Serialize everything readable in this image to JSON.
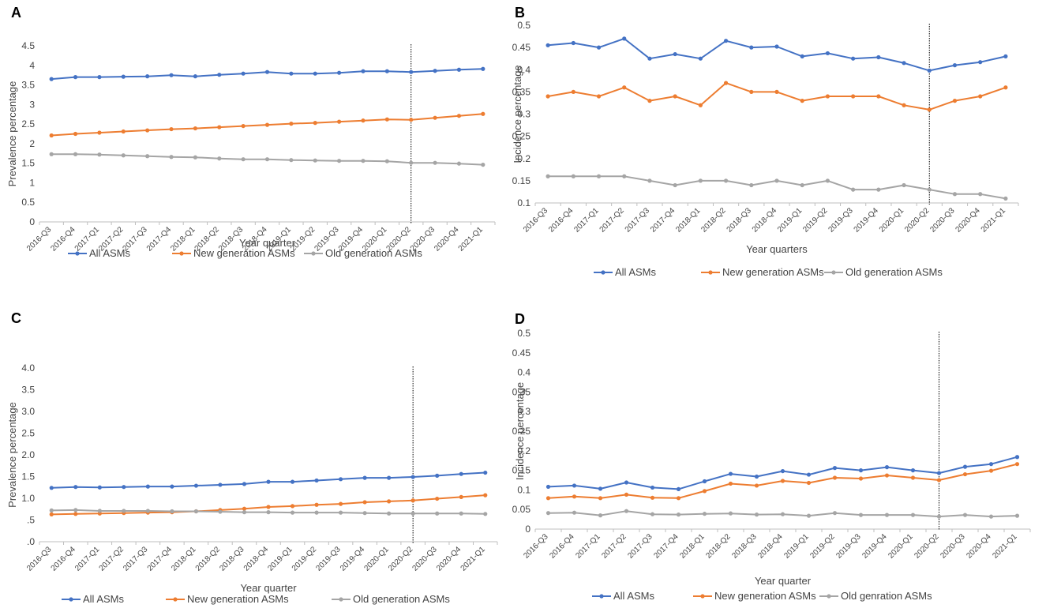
{
  "figure": {
    "panel_labels": [
      "A",
      "B",
      "C",
      "D"
    ]
  },
  "chart_data": [
    {
      "panel": "A",
      "type": "line",
      "categories": [
        "2016-Q3",
        "2016-Q4",
        "2017-Q1",
        "2017-Q2",
        "2017-Q3",
        "2017-Q4",
        "2018-Q1",
        "2018-Q2",
        "2018-Q3",
        "2018-Q4",
        "2019-Q1",
        "2019-Q2",
        "2019-Q3",
        "2019-Q4",
        "2020-Q1",
        "2020-Q2",
        "2020-Q3",
        "2020-Q4",
        "2021-Q1"
      ],
      "series": [
        {
          "name": "All ASMs",
          "color": "#4472c4",
          "values": [
            3.65,
            3.7,
            3.7,
            3.71,
            3.72,
            3.75,
            3.72,
            3.76,
            3.79,
            3.83,
            3.79,
            3.79,
            3.81,
            3.85,
            3.85,
            3.83,
            3.86,
            3.89,
            3.91
          ]
        },
        {
          "name": "New generation ASMs",
          "color": "#ed7d31",
          "values": [
            2.21,
            2.25,
            2.28,
            2.31,
            2.34,
            2.37,
            2.39,
            2.42,
            2.45,
            2.48,
            2.51,
            2.53,
            2.56,
            2.59,
            2.62,
            2.61,
            2.66,
            2.71,
            2.76
          ]
        },
        {
          "name": "Old generation ASMs",
          "color": "#a5a5a5",
          "values": [
            1.73,
            1.73,
            1.72,
            1.7,
            1.68,
            1.66,
            1.65,
            1.62,
            1.6,
            1.6,
            1.58,
            1.57,
            1.56,
            1.56,
            1.55,
            1.51,
            1.51,
            1.49,
            1.46
          ]
        }
      ],
      "yticks": [
        "0",
        "0.5",
        "1",
        "1.5",
        "2",
        "2.5",
        "3",
        "3.5",
        "4",
        "4.5"
      ],
      "ylim": [
        0,
        4.5
      ],
      "xlabel": "Year quarter",
      "ylabel": "Prevalence percentage",
      "vline_category": "2020-Q2",
      "legend": [
        "All ASMs",
        "New generation ASMs",
        "Old generation ASMs"
      ]
    },
    {
      "panel": "B",
      "type": "line",
      "categories": [
        "2016-Q3",
        "2016-Q4",
        "2017-Q1",
        "2017-Q2",
        "2017-Q3",
        "2017-Q4",
        "2018-Q1",
        "2018-Q2",
        "2018-Q3",
        "2018-Q4",
        "2019-Q1",
        "2019-Q2",
        "2019-Q3",
        "2019-Q4",
        "2020-Q1",
        "2020-Q2",
        "2020-Q3",
        "2020-Q4",
        "2021-Q1"
      ],
      "series": [
        {
          "name": "All ASMs",
          "color": "#4472c4",
          "values": [
            0.455,
            0.46,
            0.45,
            0.47,
            0.425,
            0.435,
            0.425,
            0.465,
            0.45,
            0.452,
            0.43,
            0.437,
            0.425,
            0.428,
            0.415,
            0.398,
            0.41,
            0.417,
            0.43
          ]
        },
        {
          "name": "New generation ASMs",
          "color": "#ed7d31",
          "values": [
            0.34,
            0.35,
            0.34,
            0.36,
            0.33,
            0.34,
            0.32,
            0.37,
            0.35,
            0.35,
            0.33,
            0.34,
            0.34,
            0.34,
            0.32,
            0.31,
            0.33,
            0.34,
            0.36
          ]
        },
        {
          "name": "Old generation ASMs",
          "color": "#a5a5a5",
          "values": [
            0.16,
            0.16,
            0.16,
            0.16,
            0.15,
            0.14,
            0.15,
            0.15,
            0.14,
            0.15,
            0.14,
            0.15,
            0.13,
            0.13,
            0.14,
            0.13,
            0.12,
            0.12,
            0.11
          ]
        }
      ],
      "yticks": [
        "0.1",
        "0.15",
        "0.2",
        "0.25",
        "0.3",
        "0.35",
        "0.4",
        "0.45",
        "0.5"
      ],
      "ylim": [
        0.1,
        0.5
      ],
      "xlabel": "Year quarters",
      "ylabel": "Incidence percentage",
      "vline_category": "2020-Q2",
      "legend": [
        "All ASMs",
        "New generation ASMs",
        "Old generation ASMs"
      ]
    },
    {
      "panel": "C",
      "type": "line",
      "categories": [
        "2016-Q3",
        "2016-Q4",
        "2017-Q1",
        "2017-Q2",
        "2017-Q3",
        "2017-Q4",
        "2018-Q1",
        "2018-Q2",
        "2018-Q3",
        "2018-Q4",
        "2019-Q1",
        "2019-Q2",
        "2019-Q3",
        "2019-Q4",
        "2020-Q1",
        "2020-Q2",
        "2020-Q3",
        "2020-Q4",
        "2021-Q1"
      ],
      "series": [
        {
          "name": "All ASMs",
          "color": "#4472c4",
          "values": [
            1.24,
            1.26,
            1.25,
            1.26,
            1.27,
            1.27,
            1.29,
            1.31,
            1.33,
            1.38,
            1.38,
            1.41,
            1.44,
            1.47,
            1.47,
            1.49,
            1.52,
            1.56,
            1.59
          ]
        },
        {
          "name": "New generation ASMs",
          "color": "#ed7d31",
          "values": [
            0.63,
            0.64,
            0.65,
            0.66,
            0.67,
            0.68,
            0.7,
            0.73,
            0.76,
            0.8,
            0.82,
            0.85,
            0.87,
            0.91,
            0.93,
            0.95,
            0.99,
            1.03,
            1.07
          ]
        },
        {
          "name": "Old generation ASMs",
          "color": "#a5a5a5",
          "values": [
            0.72,
            0.73,
            0.71,
            0.71,
            0.71,
            0.7,
            0.7,
            0.69,
            0.68,
            0.68,
            0.67,
            0.67,
            0.67,
            0.66,
            0.65,
            0.65,
            0.65,
            0.65,
            0.64
          ]
        }
      ],
      "yticks": [
        ".0",
        ".5",
        "1.0",
        "1.5",
        "2.0",
        "2.5",
        "3.0",
        "3.5",
        "4.0"
      ],
      "ylim": [
        0,
        4.0
      ],
      "xlabel": "Year quarter",
      "ylabel": "Prevalence percentage",
      "vline_category": "2020-Q2",
      "legend": [
        "All ASMs",
        "New generation ASMs",
        "Old generation ASMs"
      ]
    },
    {
      "panel": "D",
      "type": "line",
      "categories": [
        "2016-Q3",
        "2016-Q4",
        "2017-Q1",
        "2017-Q2",
        "2017-Q3",
        "2017-Q4",
        "2018-Q1",
        "2018-Q2",
        "2018-Q3",
        "2018-Q4",
        "2019-Q1",
        "2019-Q2",
        "2019-Q3",
        "2019-Q4",
        "2020-Q1",
        "2020-Q2",
        "2020-Q3",
        "2020-Q4",
        "2021-Q1"
      ],
      "series": [
        {
          "name": "All ASMs",
          "color": "#4472c4",
          "values": [
            0.108,
            0.111,
            0.103,
            0.119,
            0.106,
            0.102,
            0.122,
            0.141,
            0.134,
            0.148,
            0.139,
            0.156,
            0.15,
            0.158,
            0.15,
            0.143,
            0.159,
            0.166,
            0.184
          ]
        },
        {
          "name": "New generation ASMs",
          "color": "#ed7d31",
          "values": [
            0.079,
            0.083,
            0.079,
            0.088,
            0.08,
            0.079,
            0.097,
            0.116,
            0.111,
            0.123,
            0.118,
            0.131,
            0.129,
            0.137,
            0.131,
            0.125,
            0.14,
            0.149,
            0.166
          ]
        },
        {
          "name": "Old genration ASMs",
          "color": "#a5a5a5",
          "values": [
            0.041,
            0.042,
            0.035,
            0.046,
            0.038,
            0.037,
            0.039,
            0.04,
            0.037,
            0.038,
            0.034,
            0.041,
            0.036,
            0.036,
            0.036,
            0.032,
            0.036,
            0.032,
            0.034
          ]
        }
      ],
      "yticks": [
        "0",
        "0.05",
        "0.1",
        "0.15",
        "0.2",
        "0.25",
        "0.3",
        "0.35",
        "0.4",
        "0.45",
        "0.5"
      ],
      "ylim": [
        0,
        0.5
      ],
      "xlabel": "Year quarter",
      "ylabel": "Incidence percentage",
      "vline_category": "2020-Q2",
      "legend": [
        "All ASMs",
        "New generation ASMs",
        "Old genration ASMs"
      ]
    }
  ]
}
